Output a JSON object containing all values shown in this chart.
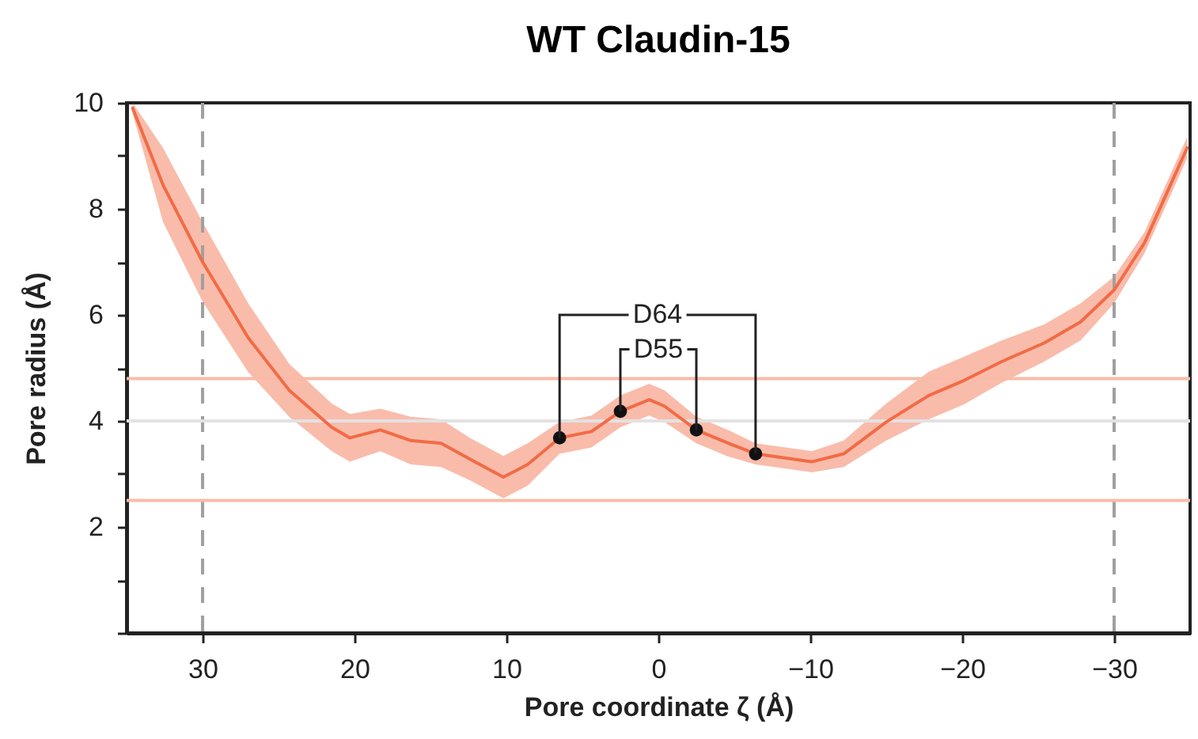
{
  "chart_data": {
    "type": "line",
    "title": "WT Claudin-15",
    "xlabel": "Pore coordinate ζ (Å)",
    "ylabel": "Pore radius (Å)",
    "x": [
      34.6,
      32.6,
      30,
      27,
      24.3,
      21.5,
      20.3,
      18.3,
      16.3,
      14.3,
      12.4,
      10.2,
      8.6,
      6.5,
      4.4,
      2.5,
      0.6,
      -0.4,
      -2.5,
      -4.6,
      -6.4,
      -10.1,
      -12.2,
      -15,
      -17.8,
      -20.1,
      -22.6,
      -25.4,
      -27.8,
      -30,
      -32,
      -34.8
    ],
    "series": [
      {
        "color": "#f26b45",
        "values": [
          9.9,
          8.45,
          7.0,
          5.57,
          4.58,
          3.88,
          3.68,
          3.83,
          3.63,
          3.58,
          3.28,
          2.94,
          3.18,
          3.68,
          3.8,
          4.18,
          4.4,
          4.28,
          3.83,
          3.58,
          3.38,
          3.23,
          3.38,
          3.98,
          4.48,
          4.76,
          5.12,
          5.47,
          5.87,
          6.47,
          7.36,
          9.15
        ],
        "lower": [
          9.8,
          7.75,
          6.25,
          4.92,
          4.08,
          3.43,
          3.23,
          3.43,
          3.18,
          3.13,
          2.88,
          2.54,
          2.78,
          3.38,
          3.5,
          3.88,
          4.1,
          3.98,
          3.58,
          3.33,
          3.18,
          3.03,
          3.13,
          3.63,
          4.03,
          4.31,
          4.72,
          5.12,
          5.52,
          6.22,
          7.16,
          8.95
        ],
        "upper": [
          10.0,
          9.15,
          7.75,
          6.22,
          5.08,
          4.33,
          4.13,
          4.23,
          4.08,
          4.03,
          3.68,
          3.34,
          3.58,
          3.98,
          4.1,
          4.48,
          4.7,
          4.58,
          4.08,
          3.83,
          3.58,
          3.43,
          3.63,
          4.33,
          4.93,
          5.21,
          5.52,
          5.82,
          6.22,
          6.72,
          7.56,
          9.35
        ]
      },
      {
        "type": "scatter",
        "name": "D64",
        "color": "#111111",
        "marker": "circle",
        "x": [
          6.5,
          -6.4
        ],
        "values": [
          3.68,
          3.38
        ]
      },
      {
        "type": "scatter",
        "name": "D55",
        "color": "#111111",
        "marker": "circle",
        "x": [
          2.5,
          -2.5
        ],
        "values": [
          4.18,
          3.83
        ]
      }
    ],
    "xlim": [
      35,
      -35
    ],
    "xticks": [
      30,
      20,
      10,
      0,
      {
        "value": -10,
        "label": "−10"
      },
      {
        "value": -20,
        "label": "−20"
      },
      {
        "value": -30,
        "label": "−30"
      }
    ],
    "ylim": [
      0,
      10
    ],
    "yticks": [
      {
        "value": 0,
        "label": null
      },
      {
        "value": 1,
        "label": null
      },
      2,
      {
        "value": 3,
        "label": null
      },
      4,
      {
        "value": 5,
        "label": null
      },
      6,
      {
        "value": 7,
        "label": null
      },
      8,
      {
        "value": 9,
        "label": null
      },
      10
    ],
    "ref_lines": [
      {
        "axis": "x",
        "value": 30,
        "color": "#a0a0a0",
        "line_style": "dashed"
      },
      {
        "axis": "x",
        "value": -30,
        "color": "#a0a0a0",
        "line_style": "dashed"
      },
      {
        "axis": "y",
        "value": 4.8,
        "color": "#f9bba8",
        "line_style": "solid"
      },
      {
        "axis": "y",
        "value": 2.5,
        "color": "#f9bba8",
        "line_style": "solid"
      },
      {
        "axis": "y",
        "value": 4,
        "color": "#e2e2e2",
        "line_style": "solid"
      }
    ],
    "grid": false
  }
}
